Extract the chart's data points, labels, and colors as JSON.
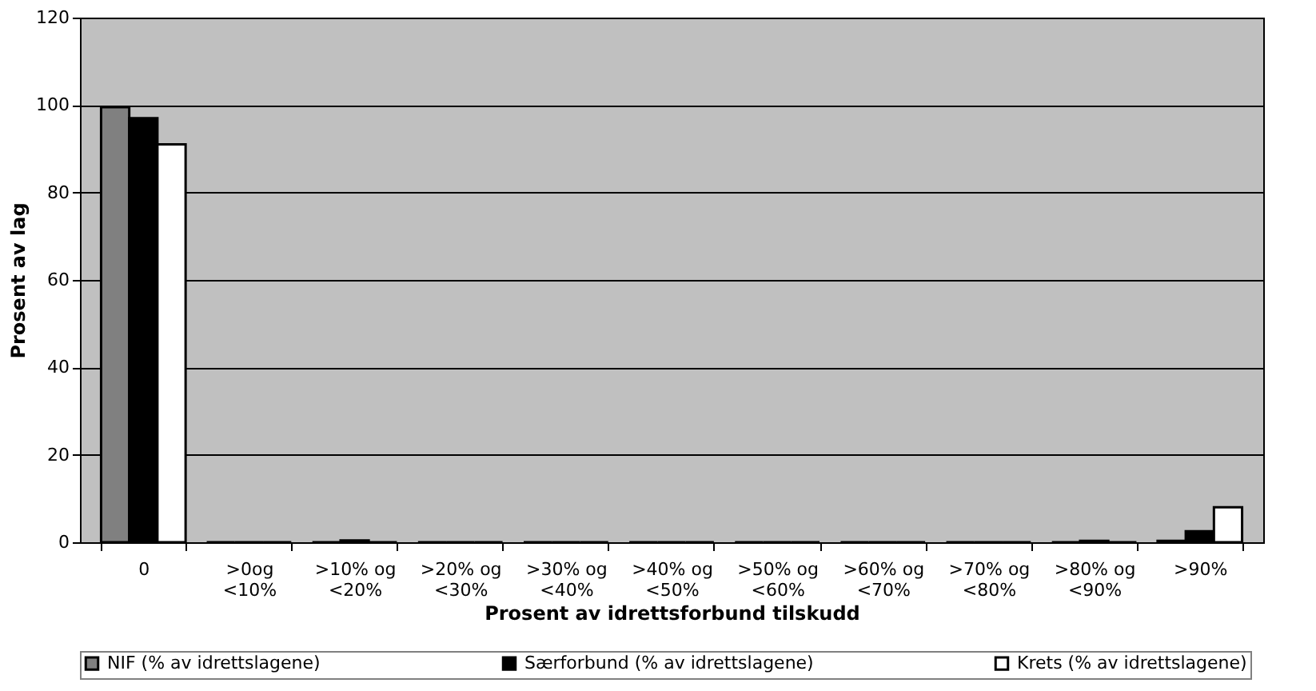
{
  "chart_data": {
    "type": "bar",
    "xlabel": "Prosent  av  idrettsforbund  tilskudd",
    "ylabel": "Prosent av lag",
    "categories": [
      "0",
      ">0og\n<10%",
      ">10% og\n<20%",
      ">20% og\n<30%",
      ">30% og\n<40%",
      ">40% og\n<50%",
      ">50% og\n<60%",
      ">60% og\n<70%",
      ">70% og\n<80%",
      ">80% og\n<90%",
      ">90%"
    ],
    "series": [
      {
        "name": "NIF (% av idrettslagene)",
        "color": "#808080",
        "values": [
          99.5,
          0,
          0,
          0,
          0,
          0,
          0,
          0,
          0,
          0,
          0.3
        ]
      },
      {
        "name": "Særforbund (% av idrettslagene)",
        "color": "#000000",
        "values": [
          97,
          0,
          0.4,
          0,
          0,
          0,
          0,
          0,
          0,
          0.3,
          2.5
        ]
      },
      {
        "name": "Krets (% av idrettslagene)",
        "color": "#ffffff",
        "values": [
          91,
          0,
          0,
          0,
          0,
          0,
          0,
          0,
          0,
          0,
          8
        ]
      }
    ],
    "ylim": [
      0,
      120
    ],
    "yticks": [
      0,
      20,
      40,
      60,
      80,
      100,
      120
    ],
    "grid": "y",
    "legend": "bottom"
  }
}
